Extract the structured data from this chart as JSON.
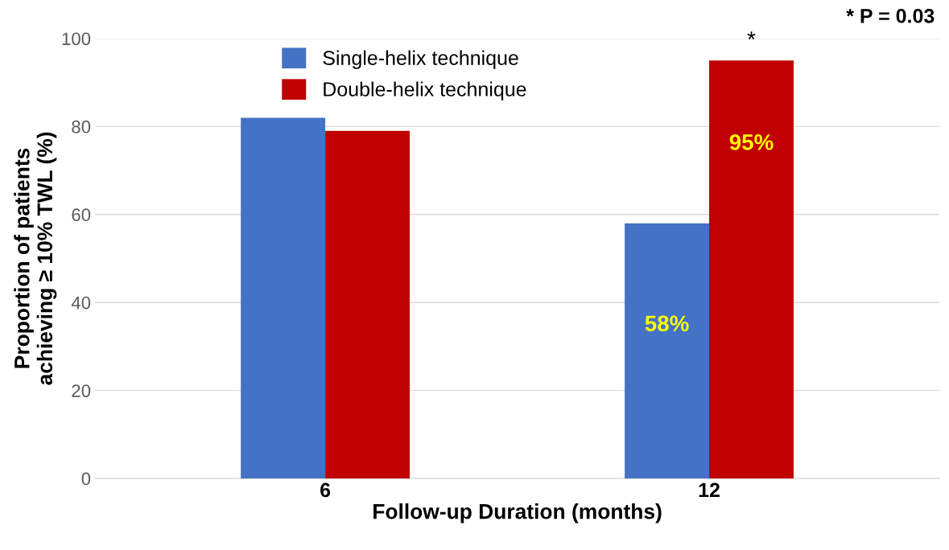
{
  "chart_data": {
    "type": "bar",
    "categories": [
      "6",
      "12"
    ],
    "series": [
      {
        "name": "Single-helix technique",
        "color": "#4472c4",
        "values": [
          82,
          58
        ],
        "value_labels": [
          null,
          "58%"
        ]
      },
      {
        "name": "Double-helix technique",
        "color": "#c00000",
        "values": [
          79,
          95
        ],
        "value_labels": [
          null,
          "95%"
        ]
      }
    ],
    "xlabel": "Follow-up Duration (months)",
    "ylabel": "Proportion of patients\nachieving ≥ 10% TWL (%)",
    "ylim": [
      0,
      100
    ],
    "yticks": [
      0,
      20,
      40,
      60,
      80,
      100
    ],
    "grid": "y",
    "legend": "top left",
    "annotations": [
      "*",
      "* P = 0.03"
    ]
  }
}
